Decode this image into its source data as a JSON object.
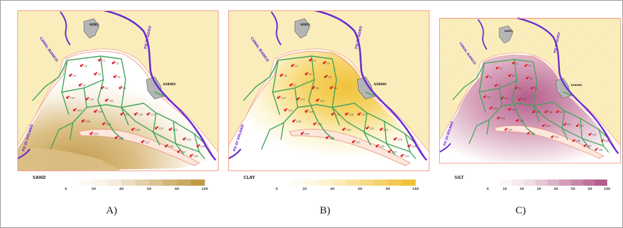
{
  "panels": [
    {
      "id": "sand",
      "legend_label": "SAND",
      "legend_ticks": [
        "0",
        "20",
        "40",
        "60",
        "80",
        "100"
      ],
      "caption": "A)",
      "colors": {
        "light": "#f8f0e2",
        "mid": "#dcbf86",
        "dark": "#c29a47"
      }
    },
    {
      "id": "clay",
      "legend_label": "CLAY",
      "legend_ticks": [
        "0",
        "20",
        "40",
        "60",
        "80",
        "100"
      ],
      "caption": "B)",
      "colors": {
        "light": "#fdf6d8",
        "mid": "#f6d56a",
        "dark": "#f0c23a"
      }
    },
    {
      "id": "silt",
      "legend_label": "SILT",
      "legend_ticks": [
        "0",
        "10",
        "20",
        "30",
        "40",
        "50",
        "60",
        "100"
      ],
      "caption": "C)",
      "colors": {
        "light": "#f3e3ea",
        "mid": "#d9a7be",
        "dark": "#b45c8a"
      }
    }
  ],
  "map_labels": {
    "canal": "CANAL BIANCO",
    "po_goro": "PO DI GORO",
    "po_volano": "PO DI VOLANO",
    "goro": "GORO",
    "gorino": "GORINO"
  },
  "land_color": "#fbefbf",
  "river_color": "#6a2ccf",
  "channel_color": "#3fa45a",
  "station_color": "#e0141c",
  "stations": [
    "C1",
    "C2",
    "C3",
    "C4",
    "C5",
    "C6",
    "C7",
    "C8",
    "C9",
    "C10",
    "C11",
    "C12",
    "C13",
    "C14",
    "C15",
    "C16",
    "C17",
    "C18",
    "C19",
    "C20",
    "C21",
    "C22",
    "C23",
    "C24",
    "C25",
    "C26",
    "C27",
    "C28",
    "C29",
    "C30"
  ]
}
